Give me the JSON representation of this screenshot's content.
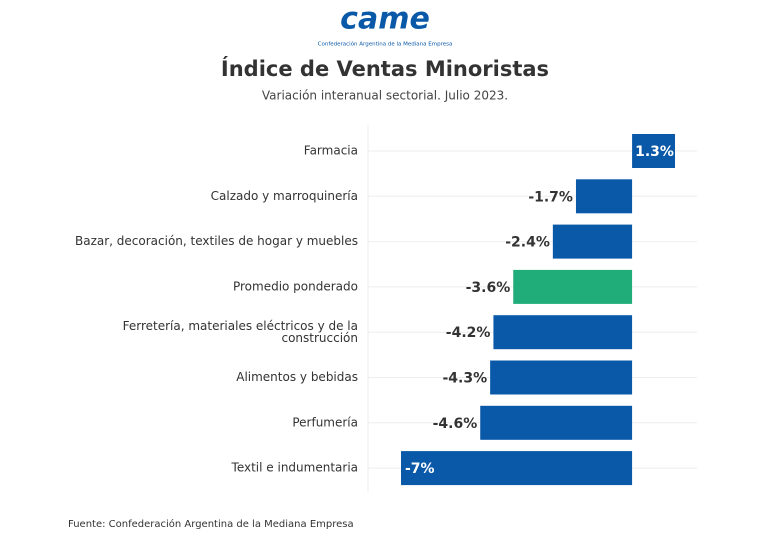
{
  "logo": {
    "text": "came",
    "subtitle": "Confederación Argentina de la Mediana Empresa"
  },
  "chart_data": {
    "type": "bar",
    "orientation": "horizontal",
    "title": "Índice de Ventas Minoristas",
    "subtitle": "Variación interanual sectorial. Julio 2023.",
    "categories": [
      "Farmacia",
      "Calzado y marroquinería",
      "Bazar, decoración, textiles de hogar y muebles",
      "Promedio ponderado",
      "Ferretería, materiales eléctricos y de la construcción",
      "Alimentos y bebidas",
      "Perfumería",
      "Textil e indumentaria"
    ],
    "values": [
      1.3,
      -1.7,
      -2.4,
      -3.6,
      -4.2,
      -4.3,
      -4.6,
      -7
    ],
    "value_labels": [
      "1.3%",
      "-1.7%",
      "-2.4%",
      "-3.6%",
      "-4.2%",
      "-4.3%",
      "-4.6%",
      "-7%"
    ],
    "colors": [
      "#0a58a8",
      "#0a58a8",
      "#0a58a8",
      "#21ad79",
      "#0a58a8",
      "#0a58a8",
      "#0a58a8",
      "#0a58a8"
    ],
    "source": "Fuente: Confederación Argentina de la Mediana Empresa"
  }
}
